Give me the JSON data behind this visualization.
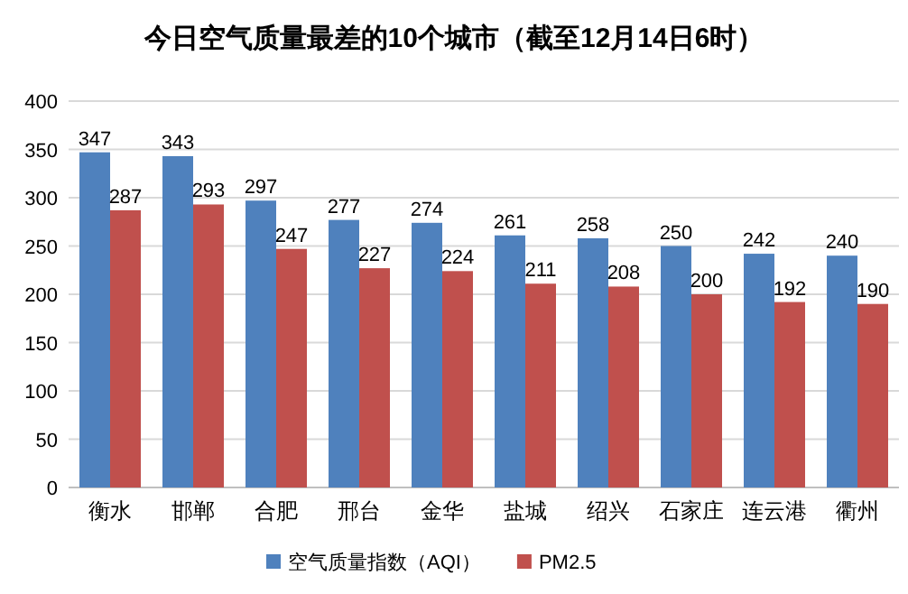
{
  "chart_data": {
    "type": "bar",
    "title": "今日空气质量最差的10个城市（截至12月14日6时）",
    "categories": [
      "衡水",
      "邯郸",
      "合肥",
      "邢台",
      "金华",
      "盐城",
      "绍兴",
      "石家庄",
      "连云港",
      "衢州"
    ],
    "series": [
      {
        "name": "空气质量指数（AQI）",
        "color": "#4f81bd",
        "values": [
          347,
          343,
          297,
          277,
          274,
          261,
          258,
          250,
          242,
          240
        ]
      },
      {
        "name": "PM2.5",
        "color": "#c0504d",
        "values": [
          287,
          293,
          247,
          227,
          224,
          211,
          208,
          200,
          192,
          190
        ]
      }
    ],
    "ylim": [
      0,
      400
    ],
    "yticks": [
      0,
      50,
      100,
      150,
      200,
      250,
      300,
      350,
      400
    ],
    "grid": "y",
    "legend": "bottom",
    "data_labels": true
  }
}
